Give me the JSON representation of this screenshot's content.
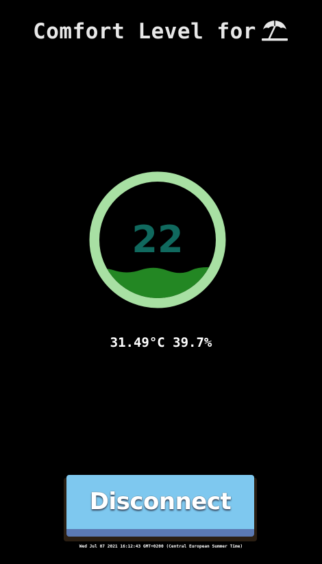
{
  "header": {
    "title": "Comfort Level for",
    "title_icon": "beach-umbrella-icon"
  },
  "gauge": {
    "value": "22",
    "ring_color": "#a8e0a3",
    "value_color": "#10695e",
    "wave_color": "#238723"
  },
  "readings": {
    "text": "31.49°C 39.7%"
  },
  "actions": {
    "disconnect_label": "Disconnect",
    "button_color": "#7ec8ef"
  },
  "footer": {
    "timestamp": "Wed Jul 07 2021 16:12:43 GMT+0200 (Central European Summer Time)"
  }
}
